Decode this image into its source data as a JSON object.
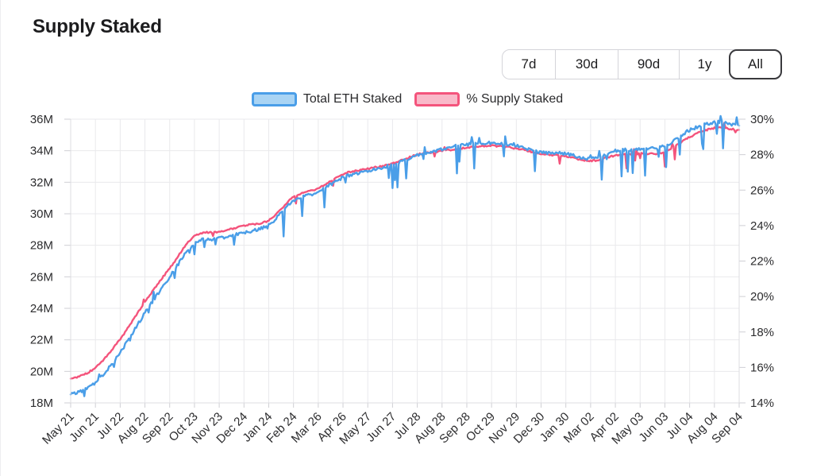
{
  "title": "Supply Staked",
  "controls": {
    "ranges": [
      {
        "label": "7d",
        "active": false
      },
      {
        "label": "30d",
        "active": false
      },
      {
        "label": "90d",
        "active": false
      },
      {
        "label": "1y",
        "active": false
      },
      {
        "label": "All",
        "active": true
      }
    ]
  },
  "legend": {
    "items": [
      {
        "label": "Total ETH Staked",
        "line_color": "#4A9EE8",
        "fill_color": "#A9D4F4"
      },
      {
        "label": "% Supply Staked",
        "line_color": "#F4547C",
        "fill_color": "#F9B9C9"
      }
    ]
  },
  "chart_data": {
    "type": "line",
    "title": "Supply Staked",
    "x_labels": [
      "May 21",
      "Jun 21",
      "Jul 22",
      "Aug 22",
      "Sep 22",
      "Oct 23",
      "Nov 23",
      "Dec 24",
      "Jan 24",
      "Feb 24",
      "Mar 26",
      "Apr 26",
      "May 27",
      "Jun 27",
      "Jul 28",
      "Aug 28",
      "Sep 28",
      "Oct 29",
      "Nov 29",
      "Dec 30",
      "Jan 30",
      "Mar 02",
      "Apr 02",
      "May 03",
      "Jun 03",
      "Jul 04",
      "Aug 04",
      "Sep 04"
    ],
    "series": [
      {
        "name": "Total ETH Staked",
        "axis": "left",
        "color": "#4A9EE8",
        "unit": "M ETH",
        "values": [
          18.55,
          19.3,
          21.2,
          23.7,
          26.0,
          28.1,
          28.45,
          28.8,
          29.3,
          30.8,
          31.4,
          32.3,
          32.7,
          33.1,
          33.7,
          34.1,
          34.4,
          34.5,
          34.3,
          33.9,
          33.8,
          33.5,
          34.0,
          34.1,
          34.3,
          35.3,
          35.8,
          35.6
        ]
      },
      {
        "name": "% Supply Staked",
        "axis": "right",
        "color": "#F4547C",
        "unit": "%",
        "values": [
          15.35,
          16.0,
          17.6,
          19.7,
          21.6,
          23.4,
          23.65,
          24.0,
          24.3,
          25.6,
          26.1,
          26.9,
          27.2,
          27.5,
          28.0,
          28.2,
          28.4,
          28.5,
          28.35,
          28.05,
          27.9,
          27.65,
          27.95,
          28.05,
          28.15,
          29.0,
          29.5,
          29.4
        ]
      }
    ],
    "left_axis": {
      "min": 18,
      "max": 36,
      "step": 2,
      "tick_labels": [
        "36M",
        "34M",
        "32M",
        "30M",
        "28M",
        "26M",
        "24M",
        "22M",
        "20M",
        "18M"
      ]
    },
    "right_axis": {
      "min": 14,
      "max": 30,
      "step": 2,
      "tick_labels": [
        "30%",
        "28%",
        "26%",
        "24%",
        "22%",
        "20%",
        "18%",
        "16%",
        "14%"
      ]
    },
    "grid": true,
    "legend_position": "top-center",
    "colors": {
      "grid_line": "#e9e9ec",
      "axis_line": "#dddde1",
      "tick_mark": "#cfcfd4",
      "tick_text": "#2c2c2e"
    }
  }
}
